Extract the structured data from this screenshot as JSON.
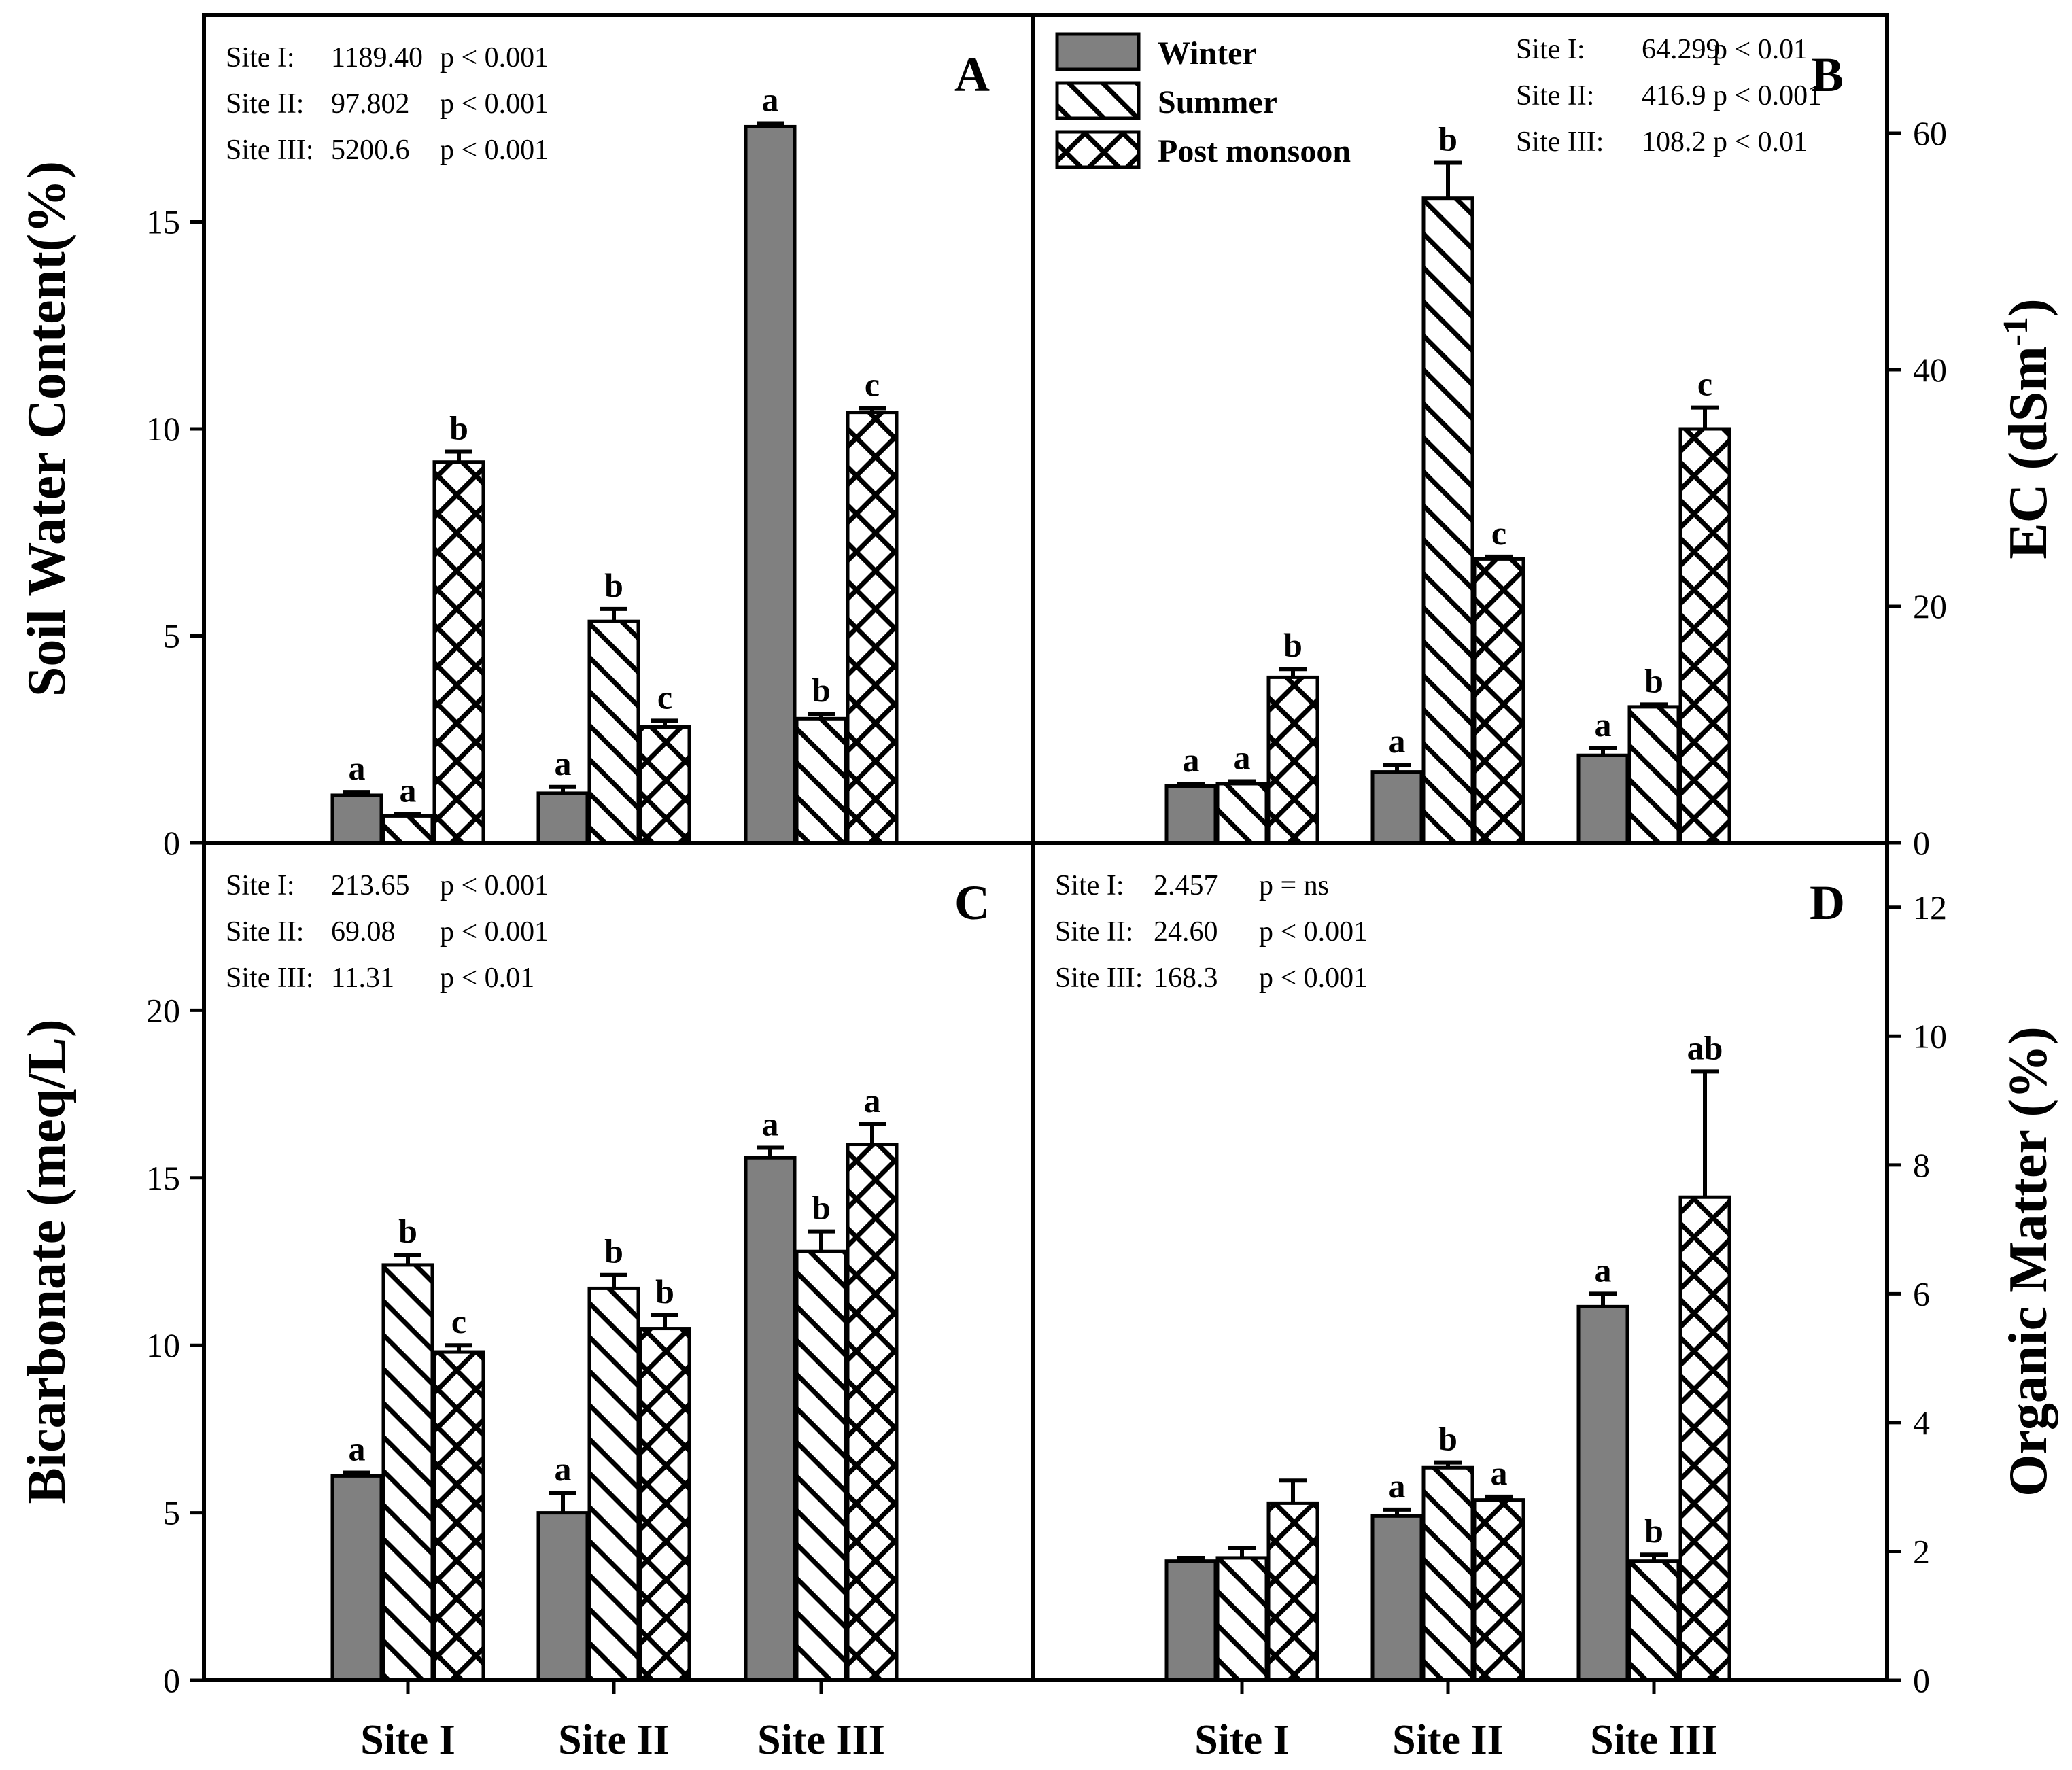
{
  "colors": {
    "winter_fill": "#808080",
    "hatch_fill": "#ffffff",
    "stroke": "#000000"
  },
  "x_tick_labels": [
    "Site I",
    "Site II",
    "Site III"
  ],
  "legend": {
    "entries": [
      "Winter",
      "Summer",
      "Post monsoon"
    ],
    "patterns": [
      "solid-gray",
      "diagonal-hatch",
      "cross-hatch"
    ]
  },
  "chart_data": [
    {
      "panel": "A",
      "type": "bar",
      "categories": [
        "Site I",
        "Site II",
        "Site III"
      ],
      "series": [
        {
          "name": "Winter",
          "values": [
            1.15,
            1.2,
            17.3
          ],
          "errors": [
            0.08,
            0.15,
            0.08
          ],
          "letters": [
            "a",
            "a",
            "a"
          ]
        },
        {
          "name": "Summer",
          "values": [
            0.65,
            5.35,
            3.0
          ],
          "errors": [
            0.05,
            0.3,
            0.12
          ],
          "letters": [
            "a",
            "b",
            "b"
          ]
        },
        {
          "name": "Post monsoon",
          "values": [
            9.2,
            2.8,
            10.4
          ],
          "errors": [
            0.25,
            0.15,
            0.1
          ],
          "letters": [
            "b",
            "c",
            "c"
          ]
        }
      ],
      "ylabel": "Soil Water Content(%)",
      "y_axis_side": "left",
      "ylim": [
        0,
        20
      ],
      "yticks": [
        0,
        5,
        10,
        15
      ],
      "stats": [
        {
          "site": "Site I:",
          "f": "1189.40",
          "p": "p < 0.001"
        },
        {
          "site": "Site II:",
          "f": "97.802",
          "p": "p < 0.001"
        },
        {
          "site": "Site III:",
          "f": "5200.6",
          "p": "p < 0.001"
        }
      ]
    },
    {
      "panel": "B",
      "type": "bar",
      "categories": [
        "Site I",
        "Site II",
        "Site III"
      ],
      "series": [
        {
          "name": "Winter",
          "values": [
            4.8,
            6.0,
            7.4
          ],
          "errors": [
            0.2,
            0.6,
            0.6
          ],
          "letters": [
            "a",
            "a",
            "a"
          ]
        },
        {
          "name": "Summer",
          "values": [
            5.0,
            54.5,
            11.5
          ],
          "errors": [
            0.2,
            3.0,
            0.2
          ],
          "letters": [
            "a",
            "b",
            "b"
          ]
        },
        {
          "name": "Post monsoon",
          "values": [
            14.0,
            24.0,
            35.0
          ],
          "errors": [
            0.7,
            0.2,
            1.8
          ],
          "letters": [
            "b",
            "c",
            "c"
          ]
        }
      ],
      "ylabel": "EC (dSm",
      "ylabel_sup": "-1",
      "ylabel_end": ")",
      "y_axis_side": "right",
      "ylim": [
        0,
        70
      ],
      "yticks": [
        0,
        20,
        40,
        60
      ],
      "stats": [
        {
          "site": "Site I:",
          "f": "64.299",
          "p": "p < 0.01"
        },
        {
          "site": "Site II:",
          "f": "416.9",
          "p": "p < 0.001"
        },
        {
          "site": "Site III:",
          "f": "108.2",
          "p": "p < 0.01"
        }
      ]
    },
    {
      "panel": "C",
      "type": "bar",
      "categories": [
        "Site I",
        "Site II",
        "Site III"
      ],
      "series": [
        {
          "name": "Winter",
          "values": [
            6.1,
            5.0,
            15.6
          ],
          "errors": [
            0.1,
            0.6,
            0.3
          ],
          "letters": [
            "a",
            "a",
            "a"
          ]
        },
        {
          "name": "Summer",
          "values": [
            12.4,
            11.7,
            12.8
          ],
          "errors": [
            0.3,
            0.4,
            0.6
          ],
          "letters": [
            "b",
            "b",
            "b"
          ]
        },
        {
          "name": "Post monsoon",
          "values": [
            9.8,
            10.5,
            16.0
          ],
          "errors": [
            0.2,
            0.4,
            0.6
          ],
          "letters": [
            "c",
            "b",
            "a"
          ]
        }
      ],
      "ylabel": "Bicarbonate (meq/L)",
      "y_axis_side": "left",
      "ylim": [
        0,
        25
      ],
      "yticks": [
        0,
        5,
        10,
        15,
        20
      ],
      "stats": [
        {
          "site": "Site I:",
          "f": "213.65",
          "p": "p < 0.001"
        },
        {
          "site": "Site II:",
          "f": "69.08",
          "p": "p < 0.001"
        },
        {
          "site": "Site III:",
          "f": "11.31",
          "p": "p < 0.01"
        }
      ]
    },
    {
      "panel": "D",
      "type": "bar",
      "categories": [
        "Site I",
        "Site II",
        "Site III"
      ],
      "series": [
        {
          "name": "Winter",
          "values": [
            1.85,
            2.55,
            5.8
          ],
          "errors": [
            0.05,
            0.1,
            0.2
          ],
          "letters": [
            "",
            "a",
            "a"
          ]
        },
        {
          "name": "Summer",
          "values": [
            1.9,
            3.3,
            1.85
          ],
          "errors": [
            0.15,
            0.08,
            0.1
          ],
          "letters": [
            "",
            "b",
            "b"
          ]
        },
        {
          "name": "Post monsoon",
          "values": [
            2.75,
            2.8,
            7.5
          ],
          "errors": [
            0.35,
            0.05,
            1.95
          ],
          "letters": [
            "",
            "a",
            "ab"
          ]
        }
      ],
      "ylabel": "Organic Matter (%)",
      "y_axis_side": "right",
      "ylim": [
        0,
        13
      ],
      "yticks": [
        0,
        2,
        4,
        6,
        8,
        10,
        12
      ],
      "stats": [
        {
          "site": "Site I:",
          "f": "2.457",
          "p": "p = ns"
        },
        {
          "site": "Site II:",
          "f": "24.60",
          "p": "p < 0.001"
        },
        {
          "site": "Site III:",
          "f": "168.3",
          "p": "p < 0.001"
        }
      ]
    }
  ]
}
